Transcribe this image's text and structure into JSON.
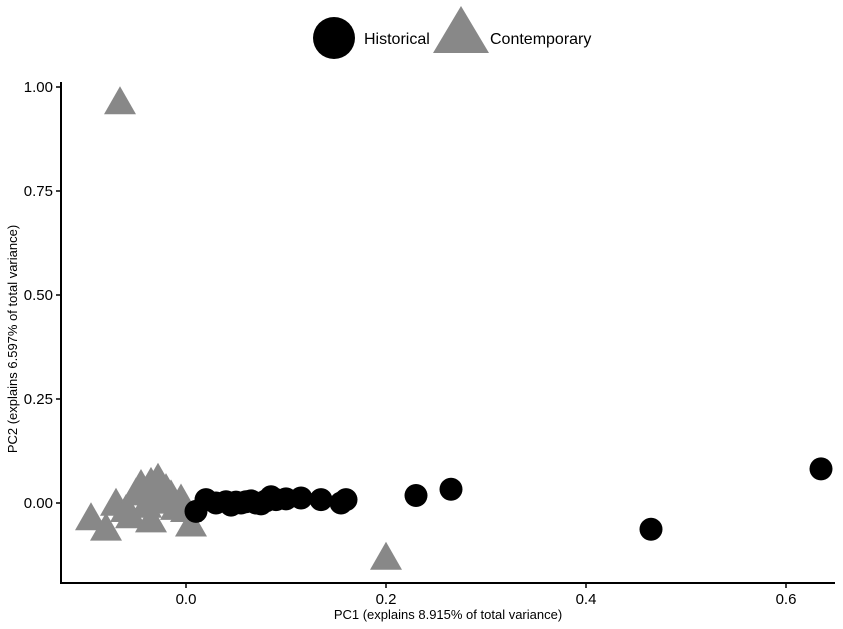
{
  "chart_data": {
    "type": "scatter",
    "title": "",
    "xlabel": "PC1 (explains 8.915% of total variance)",
    "ylabel": "PC2 (explains 6.597% of total variance)",
    "xlim": [
      -0.315,
      1.61
    ],
    "ylim": [
      -0.195,
      1.02
    ],
    "x_ticks": [
      0.0,
      0.2,
      0.4,
      0.6
    ],
    "x_tick_labels": [
      "0.0",
      "0.2",
      "0.4",
      "0.6"
    ],
    "y_ticks": [
      0.0,
      0.25,
      0.5,
      0.75,
      1.0
    ],
    "y_tick_labels": [
      "0.00",
      "0.25",
      "0.50",
      "0.75",
      "1.00"
    ],
    "grid": false,
    "legend_position": "top",
    "series": [
      {
        "name": "Historical",
        "marker": "circle",
        "color": "#000000",
        "points": [
          {
            "x": 0.01,
            "y": -0.02
          },
          {
            "x": 0.02,
            "y": 0.008
          },
          {
            "x": 0.03,
            "y": 0.0
          },
          {
            "x": 0.04,
            "y": 0.003
          },
          {
            "x": 0.045,
            "y": -0.005
          },
          {
            "x": 0.05,
            "y": 0.002
          },
          {
            "x": 0.055,
            "y": 0.0
          },
          {
            "x": 0.06,
            "y": 0.003
          },
          {
            "x": 0.065,
            "y": 0.005
          },
          {
            "x": 0.07,
            "y": 0.0
          },
          {
            "x": 0.075,
            "y": -0.002
          },
          {
            "x": 0.08,
            "y": 0.005
          },
          {
            "x": 0.085,
            "y": 0.015
          },
          {
            "x": 0.09,
            "y": 0.008
          },
          {
            "x": 0.1,
            "y": 0.01
          },
          {
            "x": 0.115,
            "y": 0.012
          },
          {
            "x": 0.135,
            "y": 0.008
          },
          {
            "x": 0.155,
            "y": 0.0
          },
          {
            "x": 0.16,
            "y": 0.008
          },
          {
            "x": 0.23,
            "y": 0.018
          },
          {
            "x": 0.265,
            "y": 0.033
          },
          {
            "x": 0.465,
            "y": -0.063
          },
          {
            "x": 0.635,
            "y": 0.082
          }
        ]
      },
      {
        "name": "Contemporary",
        "marker": "triangle",
        "color": "#888888",
        "points": [
          {
            "x": -0.066,
            "y": 0.96
          },
          {
            "x": -0.095,
            "y": -0.04
          },
          {
            "x": -0.08,
            "y": -0.065
          },
          {
            "x": -0.07,
            "y": -0.005
          },
          {
            "x": -0.06,
            "y": -0.02
          },
          {
            "x": -0.05,
            "y": 0.02
          },
          {
            "x": -0.045,
            "y": 0.04
          },
          {
            "x": -0.04,
            "y": -0.01
          },
          {
            "x": -0.035,
            "y": 0.045
          },
          {
            "x": -0.03,
            "y": 0.03
          },
          {
            "x": -0.028,
            "y": 0.055
          },
          {
            "x": -0.025,
            "y": 0.0
          },
          {
            "x": -0.02,
            "y": 0.03
          },
          {
            "x": -0.015,
            "y": 0.015
          },
          {
            "x": -0.01,
            "y": -0.015
          },
          {
            "x": -0.005,
            "y": 0.005
          },
          {
            "x": 0.0,
            "y": -0.02
          },
          {
            "x": -0.035,
            "y": -0.045
          },
          {
            "x": -0.055,
            "y": -0.035
          },
          {
            "x": 0.005,
            "y": -0.055
          },
          {
            "x": 0.2,
            "y": -0.135
          }
        ]
      }
    ]
  }
}
